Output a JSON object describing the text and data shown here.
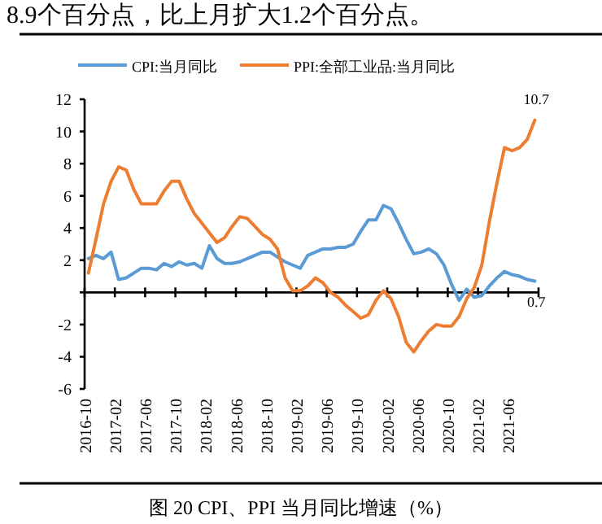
{
  "chart_data": {
    "type": "line",
    "title": "图 20 CPI、PPI 当月同比增速（%）",
    "categories": [
      "2016-10",
      null,
      null,
      null,
      "2017-02",
      null,
      null,
      null,
      "2017-06",
      null,
      null,
      null,
      "2017-10",
      null,
      null,
      null,
      "2018-02",
      null,
      null,
      null,
      "2018-06",
      null,
      null,
      null,
      "2018-10",
      null,
      null,
      null,
      "2019-02",
      null,
      null,
      null,
      "2019-06",
      null,
      null,
      null,
      "2019-10",
      null,
      null,
      null,
      "2020-02",
      null,
      null,
      null,
      "2020-06",
      null,
      null,
      null,
      "2020-10",
      null,
      null,
      null,
      "2021-02",
      null,
      null,
      null,
      "2021-06",
      null,
      null,
      null
    ],
    "series": [
      {
        "name": "CPI:当月同比",
        "color": "#5b9bd5",
        "values": [
          2.1,
          2.3,
          2.1,
          2.5,
          0.8,
          0.9,
          1.2,
          1.5,
          1.5,
          1.4,
          1.8,
          1.6,
          1.9,
          1.7,
          1.8,
          1.5,
          2.9,
          2.1,
          1.8,
          1.8,
          1.9,
          2.1,
          2.3,
          2.5,
          2.5,
          2.2,
          1.9,
          1.7,
          1.5,
          2.3,
          2.5,
          2.7,
          2.7,
          2.8,
          2.8,
          3.0,
          3.8,
          4.5,
          4.5,
          5.4,
          5.2,
          4.3,
          3.3,
          2.4,
          2.5,
          2.7,
          2.4,
          1.7,
          0.5,
          -0.5,
          0.2,
          -0.3,
          -0.2,
          0.4,
          0.9,
          1.3,
          1.1,
          1.0,
          0.8,
          0.7
        ]
      },
      {
        "name": "PPI:全部工业品:当月同比",
        "color": "#ed7d31",
        "values": [
          1.2,
          3.3,
          5.5,
          6.9,
          7.8,
          7.6,
          6.4,
          5.5,
          5.5,
          5.5,
          6.3,
          6.9,
          6.9,
          5.8,
          4.9,
          4.3,
          3.7,
          3.1,
          3.4,
          4.1,
          4.7,
          4.6,
          4.1,
          3.6,
          3.3,
          2.7,
          0.9,
          0.1,
          0.1,
          0.4,
          0.9,
          0.6,
          0.0,
          -0.3,
          -0.8,
          -1.2,
          -1.6,
          -1.4,
          -0.5,
          0.1,
          -0.4,
          -1.5,
          -3.1,
          -3.7,
          -3.0,
          -2.4,
          -2.0,
          -2.1,
          -2.1,
          -1.5,
          -0.4,
          0.3,
          1.7,
          4.4,
          6.8,
          9.0,
          8.8,
          9.0,
          9.5,
          10.7
        ]
      }
    ],
    "ylim": [
      -6,
      12
    ],
    "yticks": [
      -6,
      -4,
      -2,
      {
        "value": 0,
        "label": null
      },
      2,
      4,
      6,
      8,
      10,
      12
    ],
    "legend": "top",
    "annotations": [
      "8.9个百分点，比上月扩大1.2个百分点。",
      {
        "text": "10.7",
        "y": 10.7
      },
      {
        "text": "0.7",
        "y": 0.7
      }
    ]
  }
}
